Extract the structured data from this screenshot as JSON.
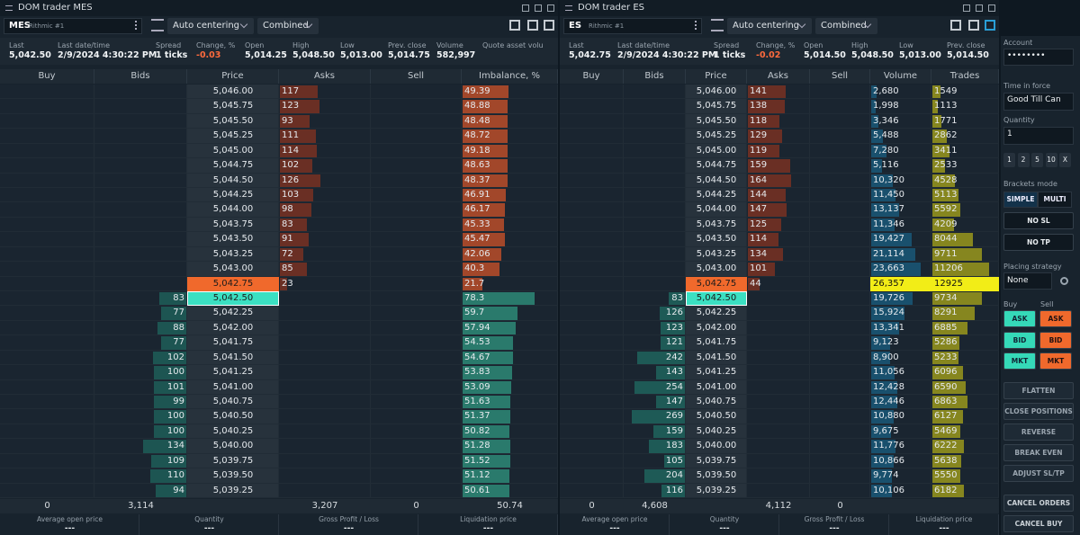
{
  "panels": [
    {
      "title": "DOM trader MES",
      "symbol": "MES",
      "connection": "Rithmic #1",
      "centering": "Auto centering",
      "mode": "Combined",
      "info": [
        {
          "label": "Last",
          "value": "5,042.50"
        },
        {
          "label": "Last date/time",
          "value": "2/9/2024 4:30:22 PM"
        },
        {
          "label": "Spread",
          "value": "1 ticks"
        },
        {
          "label": "Change, %",
          "value": "-0.03"
        },
        {
          "label": "Open",
          "value": "5,014.25"
        },
        {
          "label": "High",
          "value": "5,048.50"
        },
        {
          "label": "Low",
          "value": "5,013.00"
        },
        {
          "label": "Prev. close",
          "value": "5,014.75"
        },
        {
          "label": "Volume",
          "value": "582,997"
        },
        {
          "label": "Quote asset volu"
        }
      ],
      "columns": [
        "Buy",
        "Bids",
        "Price",
        "Asks",
        "Sell",
        "Imbalance, %"
      ],
      "rows": [
        {
          "price": "5,046.00",
          "asks": "117",
          "imbalance": "49.39"
        },
        {
          "price": "5,045.75",
          "asks": "123",
          "imbalance": "48.88"
        },
        {
          "price": "5,045.50",
          "asks": "93",
          "imbalance": "48.48"
        },
        {
          "price": "5,045.25",
          "asks": "111",
          "imbalance": "48.72"
        },
        {
          "price": "5,045.00",
          "asks": "114",
          "imbalance": "49.18"
        },
        {
          "price": "5,044.75",
          "asks": "102",
          "imbalance": "48.63"
        },
        {
          "price": "5,044.50",
          "asks": "126",
          "imbalance": "48.37"
        },
        {
          "price": "5,044.25",
          "asks": "103",
          "imbalance": "46.91"
        },
        {
          "price": "5,044.00",
          "asks": "98",
          "imbalance": "46.17"
        },
        {
          "price": "5,043.75",
          "asks": "83",
          "imbalance": "45.33"
        },
        {
          "price": "5,043.50",
          "asks": "91",
          "imbalance": "45.47"
        },
        {
          "price": "5,043.25",
          "asks": "72",
          "imbalance": "42.06"
        },
        {
          "price": "5,043.00",
          "asks": "85",
          "imbalance": "40.3"
        },
        {
          "price": "5,042.75",
          "asks": "23",
          "imbalance": "21.7"
        },
        {
          "price": "5,042.50",
          "bids": "83",
          "imbalance": "78.3"
        },
        {
          "price": "5,042.25",
          "bids": "77",
          "imbalance": "59.7"
        },
        {
          "price": "5,042.00",
          "bids": "88",
          "imbalance": "57.94"
        },
        {
          "price": "5,041.75",
          "bids": "77",
          "imbalance": "54.53"
        },
        {
          "price": "5,041.50",
          "bids": "102",
          "imbalance": "54.67"
        },
        {
          "price": "5,041.25",
          "bids": "100",
          "imbalance": "53.83"
        },
        {
          "price": "5,041.00",
          "bids": "101",
          "imbalance": "53.09"
        },
        {
          "price": "5,040.75",
          "bids": "99",
          "imbalance": "51.63"
        },
        {
          "price": "5,040.50",
          "bids": "100",
          "imbalance": "51.37"
        },
        {
          "price": "5,040.25",
          "bids": "100",
          "imbalance": "50.82"
        },
        {
          "price": "5,040.00",
          "bids": "134",
          "imbalance": "51.28"
        },
        {
          "price": "5,039.75",
          "bids": "109",
          "imbalance": "51.52"
        },
        {
          "price": "5,039.50",
          "bids": "110",
          "imbalance": "51.12"
        },
        {
          "price": "5,039.25",
          "bids": "94",
          "imbalance": "50.61"
        }
      ],
      "totals": {
        "buy": "0",
        "bids": "3,114",
        "asks": "3,207",
        "sell": "0",
        "imbalance": "50.74"
      },
      "position": [
        {
          "label": "Average open price",
          "value": "---"
        },
        {
          "label": "Quantity",
          "value": "---"
        },
        {
          "label": "Gross Profit / Loss",
          "value": "---"
        },
        {
          "label": "Liquidation price",
          "value": "---"
        }
      ]
    },
    {
      "title": "DOM trader ES",
      "symbol": "ES",
      "connection": "Rithmic #1",
      "centering": "Auto centering",
      "mode": "Combined",
      "info": [
        {
          "label": "Last",
          "value": "5,042.75"
        },
        {
          "label": "Last date/time",
          "value": "2/9/2024 4:30:22 PM"
        },
        {
          "label": "Spread",
          "value": "1 ticks"
        },
        {
          "label": "Change, %",
          "value": "-0.02"
        },
        {
          "label": "Open",
          "value": "5,014.50"
        },
        {
          "label": "High",
          "value": "5,048.50"
        },
        {
          "label": "Low",
          "value": "5,013.00"
        },
        {
          "label": "Prev. close",
          "value": "5,014.50"
        }
      ],
      "columns": [
        "Buy",
        "Bids",
        "Price",
        "Asks",
        "Sell",
        "Volume",
        "Trades"
      ],
      "rows": [
        {
          "price": "5,046.00",
          "asks": "141",
          "volume": "2,680",
          "trades": "1549"
        },
        {
          "price": "5,045.75",
          "asks": "138",
          "volume": "1,998",
          "trades": "1113"
        },
        {
          "price": "5,045.50",
          "asks": "118",
          "volume": "3,346",
          "trades": "1771"
        },
        {
          "price": "5,045.25",
          "asks": "129",
          "volume": "5,488",
          "trades": "2862"
        },
        {
          "price": "5,045.00",
          "asks": "119",
          "volume": "7,280",
          "trades": "3411"
        },
        {
          "price": "5,044.75",
          "asks": "159",
          "volume": "5,116",
          "trades": "2533"
        },
        {
          "price": "5,044.50",
          "asks": "164",
          "volume": "10,320",
          "trades": "4528"
        },
        {
          "price": "5,044.25",
          "asks": "144",
          "volume": "11,450",
          "trades": "5113"
        },
        {
          "price": "5,044.00",
          "asks": "147",
          "volume": "13,137",
          "trades": "5592"
        },
        {
          "price": "5,043.75",
          "asks": "125",
          "volume": "11,346",
          "trades": "4209"
        },
        {
          "price": "5,043.50",
          "asks": "114",
          "volume": "19,427",
          "trades": "8044"
        },
        {
          "price": "5,043.25",
          "asks": "134",
          "volume": "21,114",
          "trades": "9711"
        },
        {
          "price": "5,043.00",
          "asks": "101",
          "volume": "23,663",
          "trades": "11206"
        },
        {
          "price": "5,042.75",
          "asks": "44",
          "volume": "26,357",
          "trades": "12925"
        },
        {
          "price": "5,042.50",
          "bids": "83",
          "volume": "19,726",
          "trades": "9734"
        },
        {
          "price": "5,042.25",
          "bids": "126",
          "volume": "15,924",
          "trades": "8291"
        },
        {
          "price": "5,042.00",
          "bids": "123",
          "volume": "13,341",
          "trades": "6885"
        },
        {
          "price": "5,041.75",
          "bids": "121",
          "volume": "9,123",
          "trades": "5286"
        },
        {
          "price": "5,041.50",
          "bids": "242",
          "volume": "8,900",
          "trades": "5233"
        },
        {
          "price": "5,041.25",
          "bids": "143",
          "volume": "11,056",
          "trades": "6096"
        },
        {
          "price": "5,041.00",
          "bids": "254",
          "volume": "12,428",
          "trades": "6590"
        },
        {
          "price": "5,040.75",
          "bids": "147",
          "volume": "12,446",
          "trades": "6863"
        },
        {
          "price": "5,040.50",
          "bids": "269",
          "volume": "10,880",
          "trades": "6127"
        },
        {
          "price": "5,040.25",
          "bids": "159",
          "volume": "9,675",
          "trades": "5469"
        },
        {
          "price": "5,040.00",
          "bids": "183",
          "volume": "11,776",
          "trades": "6222"
        },
        {
          "price": "5,039.75",
          "bids": "105",
          "volume": "10,866",
          "trades": "5638"
        },
        {
          "price": "5,039.50",
          "bids": "204",
          "volume": "9,774",
          "trades": "5550"
        },
        {
          "price": "5,039.25",
          "bids": "116",
          "volume": "10,106",
          "trades": "6182"
        }
      ],
      "totals": {
        "buy": "0",
        "bids": "4,608",
        "asks": "4,112",
        "sell": "0"
      },
      "position": [
        {
          "label": "Average open price",
          "value": "---"
        },
        {
          "label": "Quantity",
          "value": "---"
        },
        {
          "label": "Gross Profit / Loss",
          "value": "---"
        },
        {
          "label": "Liquidation price",
          "value": "---"
        }
      ]
    }
  ],
  "side": {
    "account_label": "Account",
    "account": "••••••••",
    "tif_label": "Time in force",
    "tif": "Good Till Can",
    "qty_label": "Quantity",
    "qty": "1",
    "qty_presets": [
      "1",
      "2",
      "5",
      "10",
      "X"
    ],
    "brackets_label": "Brackets mode",
    "brackets": [
      "SIMPLE",
      "MULTI"
    ],
    "sl": "NO SL",
    "tp": "NO TP",
    "placing_label": "Placing strategy",
    "placing": "None",
    "buy_label": "Buy",
    "sell_label": "Sell",
    "buy_buttons": [
      "ASK",
      "BID",
      "MKT"
    ],
    "sell_buttons": [
      "ASK",
      "BID",
      "MKT"
    ],
    "actions": [
      "FLATTEN",
      "CLOSE POSITIONS",
      "REVERSE",
      "BREAK EVEN",
      "ADJUST SL/TP"
    ],
    "cancel": [
      "CANCEL ORDERS",
      "CANCEL BUY"
    ]
  }
}
